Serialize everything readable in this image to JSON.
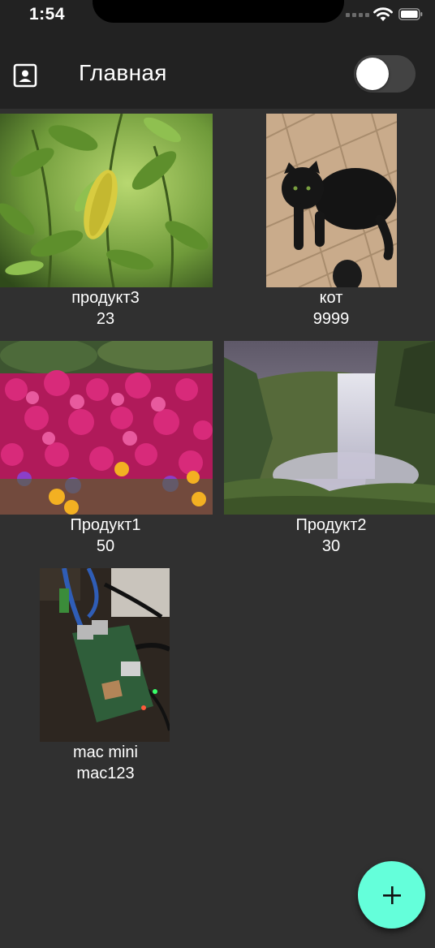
{
  "status_bar": {
    "time": "1:54"
  },
  "app_bar": {
    "title": "Главная",
    "toggle_on": false
  },
  "products": [
    {
      "name": "продукт3",
      "value": "23"
    },
    {
      "name": "кот",
      "value": "9999"
    },
    {
      "name": "Продукт1",
      "value": "50"
    },
    {
      "name": "Продукт2",
      "value": "30"
    },
    {
      "name": "mac mini",
      "value": "mac123"
    }
  ],
  "fab": {
    "icon": "plus-icon"
  }
}
